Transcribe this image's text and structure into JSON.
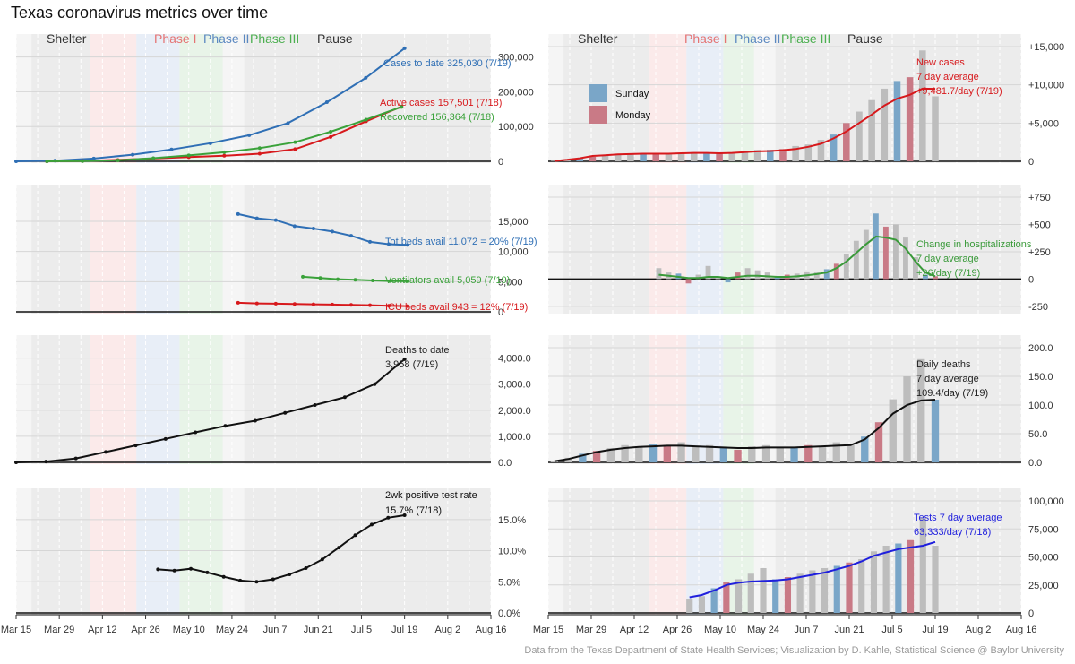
{
  "title": "Texas coronavirus metrics over time",
  "caption": "Data from the Texas Department of State Health Services; Visualization by D. Kahle, Statistical Science @ Baylor University",
  "colors": {
    "cases": "#2f6fb5",
    "active": "#d7191c",
    "recovered": "#3aa23a",
    "hosp": "#3a9a3a",
    "deaths": "#111111",
    "tests": "#1f1fdd",
    "sunday": "#7aa6c8",
    "monday": "#c97a86",
    "bar": "#bdbdbd"
  },
  "phases": [
    {
      "label": "Shelter",
      "color": "#333333",
      "shade": "#ececec"
    },
    {
      "label": "Phase I",
      "color": "#e57373",
      "shade": "#fbeaea"
    },
    {
      "label": "Phase II",
      "color": "#5b88c0",
      "shade": "#e8eef7"
    },
    {
      "label": "Phase III",
      "color": "#4caf50",
      "shade": "#e8f4e8"
    },
    {
      "label": "Pause",
      "color": "#333333",
      "shade": "#ececec"
    }
  ],
  "legend": [
    {
      "label": "Sunday",
      "color": "#7aa6c8"
    },
    {
      "label": "Monday",
      "color": "#c97a86"
    }
  ],
  "chart_data": [
    {
      "type": "line",
      "panel": "cumulative-cases",
      "title": "",
      "x_tick_labels": [
        "Mar 15",
        "Mar 29",
        "Apr 12",
        "Apr 26",
        "May 10",
        "May 24",
        "Jun 7",
        "Jun 21",
        "Jul 5",
        "Jul 19",
        "Aug 2",
        "Aug 16"
      ],
      "y_tick_labels": [
        "0",
        "100,000",
        "200,000",
        "300,000"
      ],
      "ylim": [
        0,
        330000
      ],
      "series": [
        {
          "name": "Cases to date",
          "values": [
            100,
            2000,
            8000,
            19000,
            34000,
            52000,
            75000,
            110000,
            170000,
            240000,
            325030
          ]
        },
        {
          "name": "Active cases",
          "values": [
            50,
            1000,
            4000,
            8000,
            12000,
            16000,
            22000,
            35000,
            70000,
            115000,
            157501
          ]
        },
        {
          "name": "Recovered",
          "values": [
            0,
            500,
            3000,
            9000,
            17000,
            26000,
            38000,
            55000,
            85000,
            120000,
            156364
          ]
        }
      ],
      "annotations": [
        "Cases to date 325,030 (7/19)",
        "Active cases 157,501 (7/18)",
        "Recovered 156,364 (7/18)"
      ]
    },
    {
      "type": "bar",
      "panel": "new-cases",
      "y_tick_labels": [
        "0",
        "+5,000",
        "+10,000",
        "+15,000"
      ],
      "ylim": [
        0,
        15000
      ],
      "values": [
        50,
        200,
        400,
        600,
        800,
        900,
        1000,
        1100,
        1000,
        900,
        1000,
        1200,
        1100,
        1000,
        1200,
        1400,
        1500,
        1500,
        1600,
        2000,
        2200,
        2800,
        3500,
        5000,
        6500,
        8000,
        9500,
        10500,
        11000,
        14500,
        8500
      ],
      "avg_values": [
        50,
        200,
        400,
        700,
        800,
        900,
        950,
        1000,
        1000,
        1000,
        1050,
        1100,
        1100,
        1050,
        1100,
        1200,
        1300,
        1350,
        1450,
        1600,
        1900,
        2300,
        3000,
        3900,
        5000,
        6100,
        7300,
        8200,
        8700,
        9500,
        9481.7
      ],
      "annotations": [
        "New cases",
        "7 day average",
        "+9,481.7/day (7/19)"
      ]
    },
    {
      "type": "line",
      "panel": "hospital-capacity",
      "y_tick_labels": [
        "0",
        "5,000",
        "10,000",
        "15,000"
      ],
      "ylim": [
        0,
        19000
      ],
      "series": [
        {
          "name": "Tot beds avail",
          "values": [
            16200,
            15500,
            15200,
            14200,
            13800,
            13300,
            12600,
            11600,
            11200,
            11072
          ]
        },
        {
          "name": "Ventilators avail",
          "values": [
            5800,
            5600,
            5400,
            5300,
            5200,
            5100,
            5059
          ]
        },
        {
          "name": "ICU beds avail",
          "values": [
            1500,
            1400,
            1350,
            1300,
            1250,
            1200,
            1150,
            1100,
            1000,
            943
          ]
        }
      ],
      "annotations": [
        "Tot beds avail 11,072 = 20% (7/19)",
        "Ventilators avail 5,059 (7/19)",
        "ICU beds avail 943 = 12% (7/19)"
      ]
    },
    {
      "type": "bar",
      "panel": "hospitalization-change",
      "y_tick_labels": [
        "-250",
        "0",
        "+250",
        "+500",
        "+750"
      ],
      "ylim": [
        -300,
        750
      ],
      "values": [
        100,
        60,
        50,
        -40,
        40,
        120,
        20,
        -30,
        60,
        100,
        80,
        60,
        20,
        40,
        50,
        70,
        60,
        90,
        140,
        230,
        350,
        450,
        600,
        480,
        500,
        380,
        200,
        40,
        26
      ],
      "avg_values": [
        40,
        30,
        20,
        10,
        10,
        20,
        20,
        10,
        20,
        30,
        30,
        25,
        20,
        20,
        25,
        35,
        45,
        60,
        100,
        160,
        240,
        320,
        390,
        380,
        360,
        280,
        160,
        60,
        26
      ],
      "annotations": [
        "Change in hospitalizations",
        "7 day average",
        "+26/day (7/19)"
      ]
    },
    {
      "type": "line",
      "panel": "cumulative-deaths",
      "y_tick_labels": [
        "0.0",
        "1,000.0",
        "2,000.0",
        "3,000.0",
        "4,000.0"
      ],
      "ylim": [
        0,
        4400
      ],
      "values": [
        0,
        30,
        150,
        400,
        650,
        900,
        1150,
        1400,
        1600,
        1900,
        2200,
        2500,
        3000,
        3958
      ],
      "annotations": [
        "Deaths to date",
        "3,958 (7/19)"
      ]
    },
    {
      "type": "bar",
      "panel": "daily-deaths",
      "y_tick_labels": [
        "0.0",
        "50.0",
        "100.0",
        "150.0",
        "200.0"
      ],
      "ylim": [
        0,
        200
      ],
      "values": [
        2,
        8,
        15,
        20,
        25,
        30,
        28,
        32,
        30,
        35,
        28,
        30,
        25,
        22,
        28,
        30,
        26,
        25,
        30,
        28,
        35,
        30,
        45,
        70,
        110,
        150,
        180,
        109.4
      ],
      "avg_values": [
        2,
        6,
        12,
        18,
        22,
        25,
        27,
        28,
        29,
        29,
        28,
        27,
        26,
        25,
        25,
        26,
        26,
        26,
        27,
        28,
        29,
        30,
        40,
        60,
        85,
        100,
        108,
        109.4
      ],
      "annotations": [
        "Daily deaths",
        "7 day average",
        "109.4/day (7/19)"
      ]
    },
    {
      "type": "line",
      "panel": "positive-test-rate",
      "y_tick_labels": [
        "0.0%",
        "5.0%",
        "10.0%",
        "15.0%"
      ],
      "ylim": [
        0,
        18
      ],
      "values": [
        7,
        6.8,
        7.1,
        6.5,
        5.8,
        5.2,
        5.0,
        5.4,
        6.2,
        7.2,
        8.6,
        10.5,
        12.5,
        14.2,
        15.3,
        15.7
      ],
      "annotations": [
        "2wk positive test rate",
        "15.7% (7/18)"
      ]
    },
    {
      "type": "bar",
      "panel": "tests",
      "y_tick_labels": [
        "0",
        "25,000",
        "50,000",
        "75,000",
        "100,000"
      ],
      "ylim": [
        0,
        100000
      ],
      "values": [
        12000,
        15000,
        22000,
        28000,
        30000,
        35000,
        40000,
        30000,
        32000,
        35000,
        38000,
        40000,
        42000,
        45000,
        48000,
        55000,
        60000,
        62000,
        65000,
        85000,
        60000
      ],
      "avg_values": [
        14000,
        16000,
        20000,
        25000,
        27000,
        28000,
        28500,
        29000,
        30000,
        32000,
        34000,
        36000,
        39000,
        42000,
        46000,
        51000,
        54000,
        57000,
        58500,
        60000,
        63333
      ],
      "annotations": [
        "Tests 7 day average",
        "63,333/day (7/18)"
      ]
    }
  ]
}
